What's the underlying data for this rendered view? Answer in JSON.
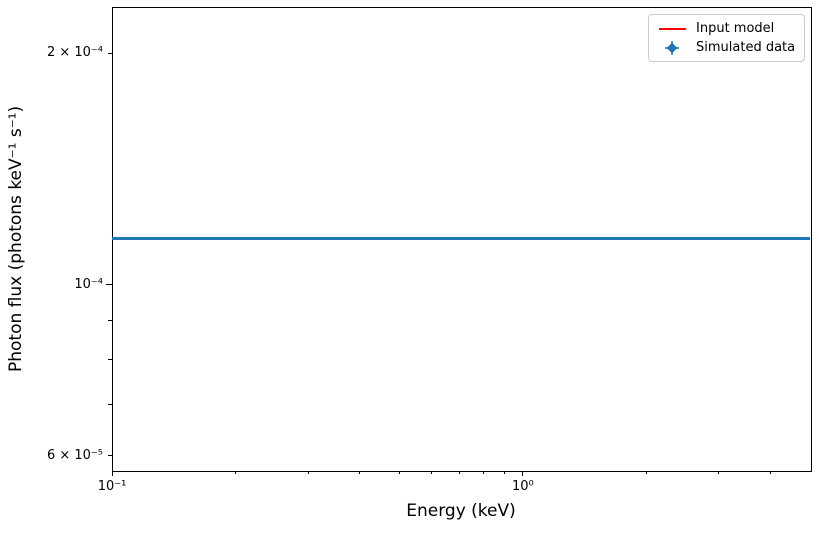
{
  "chart_data": {
    "type": "line",
    "title": "",
    "xlabel": "Energy (keV)",
    "ylabel": "Photon flux (photons keV⁻¹ s⁻¹)",
    "x_scale": "log",
    "y_scale": "log",
    "xlim": [
      0.1,
      5.0
    ],
    "ylim": [
      5.75e-05,
      0.0002295
    ],
    "grid": false,
    "series": [
      {
        "name": "Input model",
        "kind": "constant-line",
        "value": 0.000115,
        "color": "#ff0000",
        "linewidth": 2,
        "note": "flat model line, hidden beneath simulated data"
      },
      {
        "name": "Simulated data",
        "kind": "constant-line",
        "value": 0.000115,
        "color": "#1f77b4",
        "linewidth": 3,
        "note": "densely packed data points forming a flat line on top of the model"
      }
    ],
    "x_axis": {
      "major_ticks": [
        {
          "label": "10⁻¹",
          "value": 0.1
        },
        {
          "label": "10⁰",
          "value": 1.0
        }
      ],
      "minor_ticks": [
        0.2,
        0.3,
        0.4,
        0.5,
        0.6,
        0.7,
        0.8,
        0.9,
        2.0,
        3.0,
        4.0
      ]
    },
    "y_axis": {
      "major_ticks": [
        {
          "label": "10⁻⁴",
          "value": 0.0001
        }
      ],
      "labeled_minor_ticks": [
        {
          "label": "2 × 10⁻⁴",
          "value": 0.0002
        },
        {
          "label": "6 × 10⁻⁵",
          "value": 6e-05
        }
      ],
      "minor_ticks": [
        9e-05,
        8e-05,
        7e-05
      ]
    },
    "legend": {
      "position": "upper right",
      "entries": [
        {
          "label": "Input model",
          "color": "#ff0000",
          "handle": "line"
        },
        {
          "label": "Simulated data",
          "color": "#1f77b4",
          "handle": "diamond-errorbar"
        }
      ]
    }
  }
}
